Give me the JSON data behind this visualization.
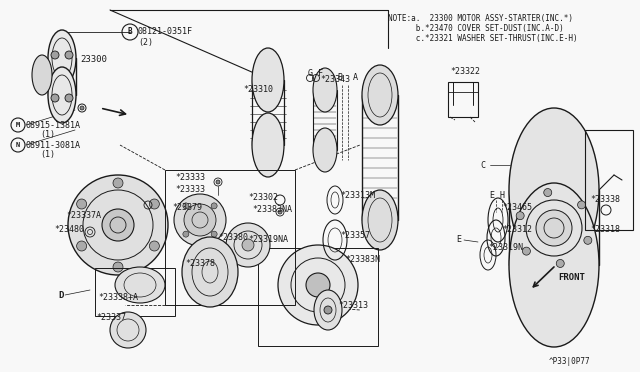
{
  "bg_color": "#f0f0f0",
  "line_color": "#1a1a1a",
  "text_color": "#1a1a1a",
  "fig_width": 6.4,
  "fig_height": 3.72,
  "dpi": 100,
  "note_lines": [
    "NOTE:a.  23300 MOTOR ASSY-STARTER(INC.*)",
    "      b.*23470 COVER SET-DUST(INC.A-D)",
    "      c.*23321 WASHER SET-THRUST(INC.E-H)"
  ],
  "footer_code": "^P33|0P77"
}
